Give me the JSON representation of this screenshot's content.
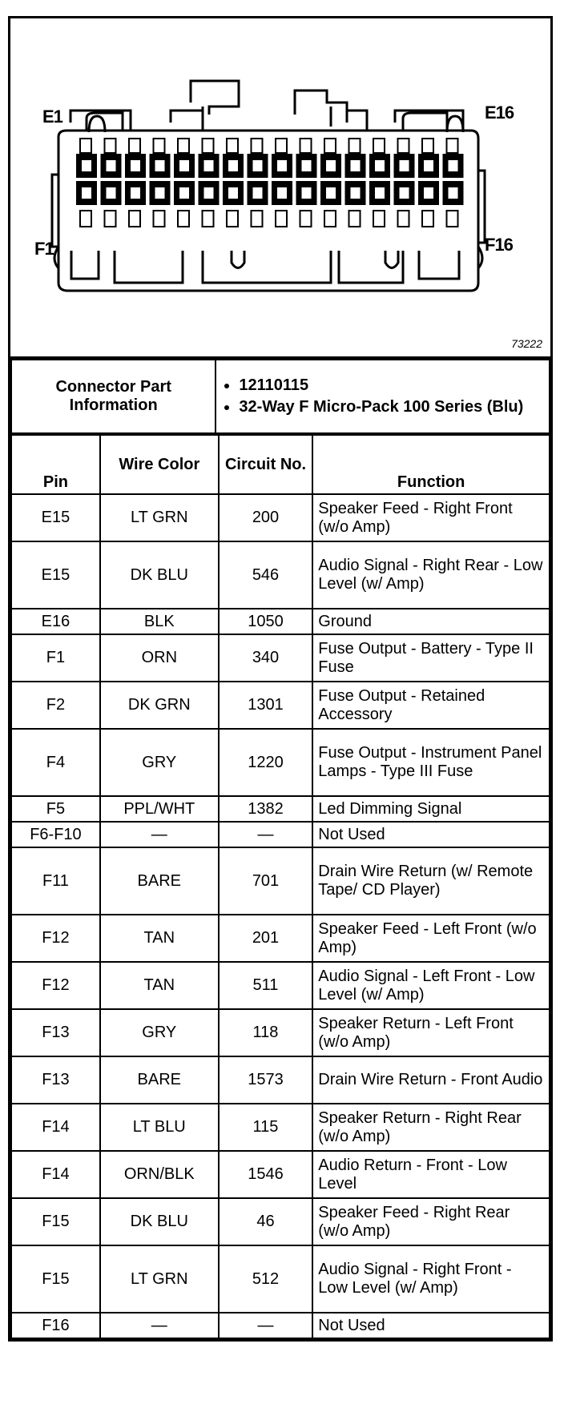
{
  "diagram": {
    "labels": {
      "e1": "E1",
      "e16": "E16",
      "f1": "F1",
      "f16": "F16"
    },
    "figure_number": "73222",
    "pins_per_row": 16
  },
  "connector_info": {
    "label": "Connector Part Information",
    "items": [
      "12110115",
      "32-Way F Micro-Pack 100 Series (Blu)"
    ]
  },
  "table": {
    "headers": {
      "pin": "Pin",
      "wire_color": "Wire Color",
      "circuit": "Circuit No.",
      "function": "Function"
    },
    "rows": [
      {
        "pin": "E15",
        "color": "LT GRN",
        "circuit": "200",
        "function": "Speaker Feed - Right Front (w/o Amp)",
        "lines": 2
      },
      {
        "pin": "E15",
        "color": "DK BLU",
        "circuit": "546",
        "function": "Audio Signal - Right Rear - Low Level (w/ Amp)",
        "lines": 3
      },
      {
        "pin": "E16",
        "color": "BLK",
        "circuit": "1050",
        "function": "Ground",
        "lines": 1
      },
      {
        "pin": "F1",
        "color": "ORN",
        "circuit": "340",
        "function": "Fuse Output - Battery - Type II Fuse",
        "lines": 2
      },
      {
        "pin": "F2",
        "color": "DK GRN",
        "circuit": "1301",
        "function": "Fuse Output - Retained Accessory",
        "lines": 2
      },
      {
        "pin": "F4",
        "color": "GRY",
        "circuit": "1220",
        "function": "Fuse Output - Instrument Panel Lamps - Type III Fuse",
        "lines": 3
      },
      {
        "pin": "F5",
        "color": "PPL/WHT",
        "circuit": "1382",
        "function": "Led Dimming Signal",
        "lines": 1
      },
      {
        "pin": "F6-F10",
        "color": "—",
        "circuit": "—",
        "function": "Not Used",
        "lines": 1
      },
      {
        "pin": "F11",
        "color": "BARE",
        "circuit": "701",
        "function": "Drain Wire Return (w/ Remote Tape/ CD Player)",
        "lines": 3
      },
      {
        "pin": "F12",
        "color": "TAN",
        "circuit": "201",
        "function": "Speaker Feed - Left Front (w/o Amp)",
        "lines": 2
      },
      {
        "pin": "F12",
        "color": "TAN",
        "circuit": "511",
        "function": "Audio Signal - Left Front - Low Level (w/ Amp)",
        "lines": 2
      },
      {
        "pin": "F13",
        "color": "GRY",
        "circuit": "118",
        "function": "Speaker Return - Left Front (w/o Amp)",
        "lines": 2
      },
      {
        "pin": "F13",
        "color": "BARE",
        "circuit": "1573",
        "function": "Drain Wire Return - Front Audio",
        "lines": 2
      },
      {
        "pin": "F14",
        "color": "LT BLU",
        "circuit": "115",
        "function": "Speaker Return - Right Rear (w/o Amp)",
        "lines": 2
      },
      {
        "pin": "F14",
        "color": "ORN/BLK",
        "circuit": "1546",
        "function": "Audio Return - Front - Low Level",
        "lines": 2
      },
      {
        "pin": "F15",
        "color": "DK BLU",
        "circuit": "46",
        "function": "Speaker Feed - Right Rear (w/o Amp)",
        "lines": 2
      },
      {
        "pin": "F15",
        "color": "LT GRN",
        "circuit": "512",
        "function": "Audio Signal - Right Front - Low Level (w/ Amp)",
        "lines": 3
      },
      {
        "pin": "F16",
        "color": "—",
        "circuit": "—",
        "function": "Not Used",
        "lines": 1
      }
    ]
  }
}
